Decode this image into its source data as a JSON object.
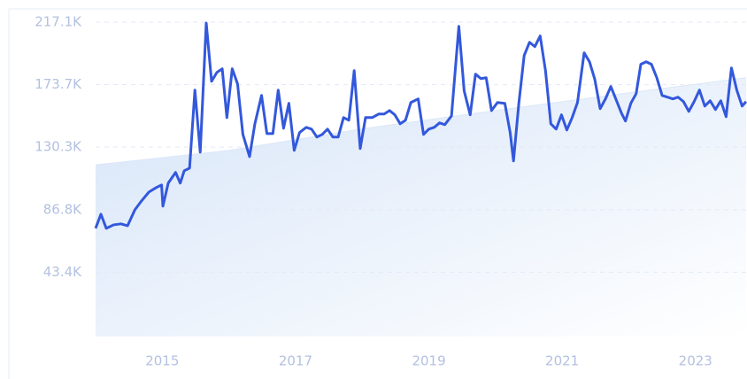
{
  "chart_data": {
    "type": "line",
    "ylim": [
      0,
      217100
    ],
    "yticks": [
      {
        "value": 43400,
        "label": "43.4K"
      },
      {
        "value": 86800,
        "label": "86.8K"
      },
      {
        "value": 130300,
        "label": "130.3K"
      },
      {
        "value": 173700,
        "label": "173.7K"
      },
      {
        "value": 217100,
        "label": "217.1K"
      }
    ],
    "xlim": [
      2014,
      2023.76
    ],
    "xticks": [
      2015,
      2017,
      2019,
      2021,
      2023
    ],
    "grid": true,
    "series": [
      {
        "color": "#3358dc",
        "x": [
          2014.0,
          2014.08,
          2014.16,
          2014.27,
          2014.38,
          2014.48,
          2014.59,
          2014.69,
          2014.8,
          2014.91,
          2014.99,
          2015.01,
          2015.09,
          2015.2,
          2015.27,
          2015.33,
          2015.41,
          2015.49,
          2015.57,
          2015.66,
          2015.74,
          2015.82,
          2015.9,
          2015.97,
          2016.05,
          2016.13,
          2016.21,
          2016.31,
          2016.39,
          2016.49,
          2016.57,
          2016.66,
          2016.74,
          2016.82,
          2016.9,
          2016.98,
          2017.06,
          2017.16,
          2017.24,
          2017.32,
          2017.4,
          2017.48,
          2017.56,
          2017.64,
          2017.72,
          2017.8,
          2017.88,
          2017.97,
          2018.05,
          2018.15,
          2018.25,
          2018.33,
          2018.41,
          2018.49,
          2018.57,
          2018.65,
          2018.73,
          2018.84,
          2018.92,
          2019.0,
          2019.08,
          2019.16,
          2019.24,
          2019.34,
          2019.45,
          2019.53,
          2019.62,
          2019.7,
          2019.78,
          2019.86,
          2019.94,
          2020.03,
          2020.14,
          2020.22,
          2020.27,
          2020.35,
          2020.43,
          2020.51,
          2020.59,
          2020.67,
          2020.75,
          2020.83,
          2020.91,
          2020.99,
          2021.07,
          2021.15,
          2021.23,
          2021.33,
          2021.41,
          2021.49,
          2021.57,
          2021.65,
          2021.73,
          2021.81,
          2021.89,
          2021.95,
          2022.03,
          2022.11,
          2022.18,
          2022.26,
          2022.34,
          2022.42,
          2022.5,
          2022.58,
          2022.66,
          2022.74,
          2022.82,
          2022.9,
          2022.98,
          2023.06,
          2023.14,
          2023.22,
          2023.3,
          2023.38,
          2023.46,
          2023.54,
          2023.62,
          2023.7,
          2023.76
        ],
        "values": [
          73900,
          83700,
          73900,
          76300,
          77000,
          75700,
          86800,
          93000,
          99100,
          102200,
          104000,
          89300,
          105300,
          112700,
          105300,
          113900,
          115700,
          169900,
          126800,
          216500,
          176000,
          182200,
          184700,
          150800,
          184700,
          174200,
          139100,
          123700,
          146500,
          166200,
          139700,
          139700,
          169900,
          143400,
          160700,
          128000,
          140400,
          144000,
          142800,
          137300,
          139100,
          142800,
          137300,
          137300,
          150800,
          149000,
          183400,
          129300,
          150800,
          150800,
          153300,
          153300,
          155700,
          152700,
          146500,
          149000,
          161300,
          163800,
          139100,
          142800,
          144000,
          147100,
          145900,
          152000,
          214200,
          169300,
          152700,
          181000,
          177900,
          178500,
          155700,
          161300,
          160700,
          140400,
          120700,
          160700,
          193900,
          203100,
          200100,
          207500,
          183400,
          146500,
          142800,
          152700,
          142200,
          150800,
          161300,
          195800,
          189600,
          177300,
          157000,
          163800,
          172400,
          163200,
          153900,
          148400,
          160700,
          167400,
          187800,
          189600,
          187800,
          178500,
          166200,
          165000,
          163800,
          165000,
          161900,
          155100,
          161900,
          169900,
          158800,
          162500,
          156400,
          162500,
          151400,
          185300,
          169900,
          158800,
          161900
        ]
      },
      {
        "color": "#dbe7f8",
        "x": [
          2014,
          2016,
          2018,
          2020,
          2022,
          2023.76
        ],
        "values": [
          118000,
          128000,
          143000,
          155700,
          168000,
          178500
        ]
      }
    ]
  }
}
